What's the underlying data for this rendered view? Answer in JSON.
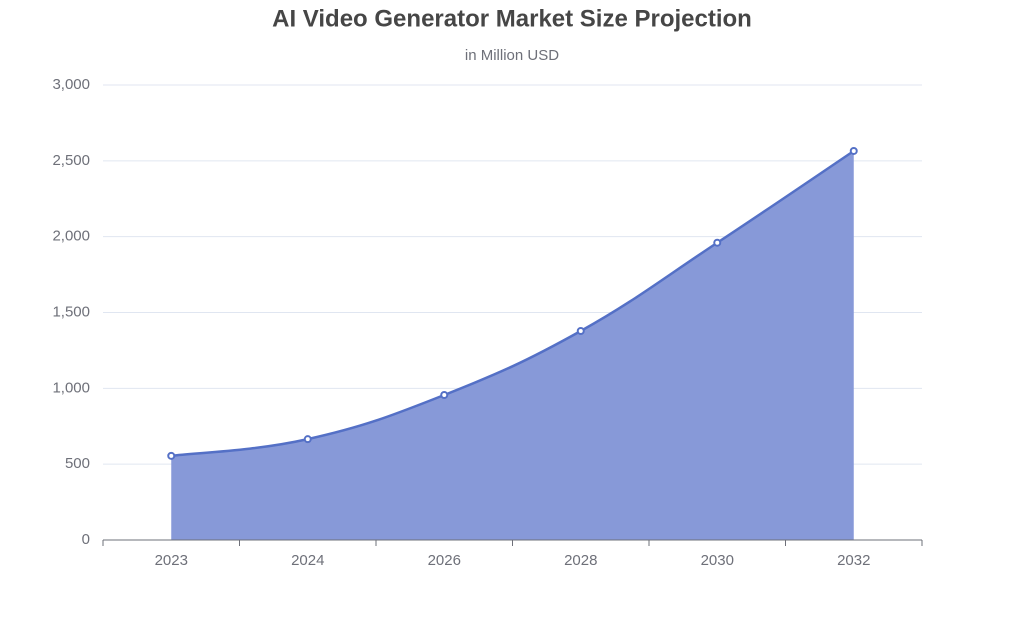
{
  "chart_data": {
    "type": "area",
    "title": "AI Video Generator Market Size Projection",
    "subtitle": "in Million USD",
    "categories": [
      "2023",
      "2024",
      "2026",
      "2028",
      "2030",
      "2032"
    ],
    "values": [
      555,
      665,
      956,
      1378,
      1960,
      2565
    ],
    "color": "#5470c6",
    "area_color": "#8799d8",
    "ylim": [
      0,
      3000
    ],
    "yticks": [
      0,
      {
        "value": 500,
        "label": "500"
      },
      {
        "value": 1000,
        "label": "1,000"
      },
      {
        "value": 1500,
        "label": "1,500"
      },
      {
        "value": 2000,
        "label": "2,000"
      },
      {
        "value": 2500,
        "label": "2,500"
      },
      {
        "value": 3000,
        "label": "3,000"
      }
    ],
    "grid": true
  }
}
